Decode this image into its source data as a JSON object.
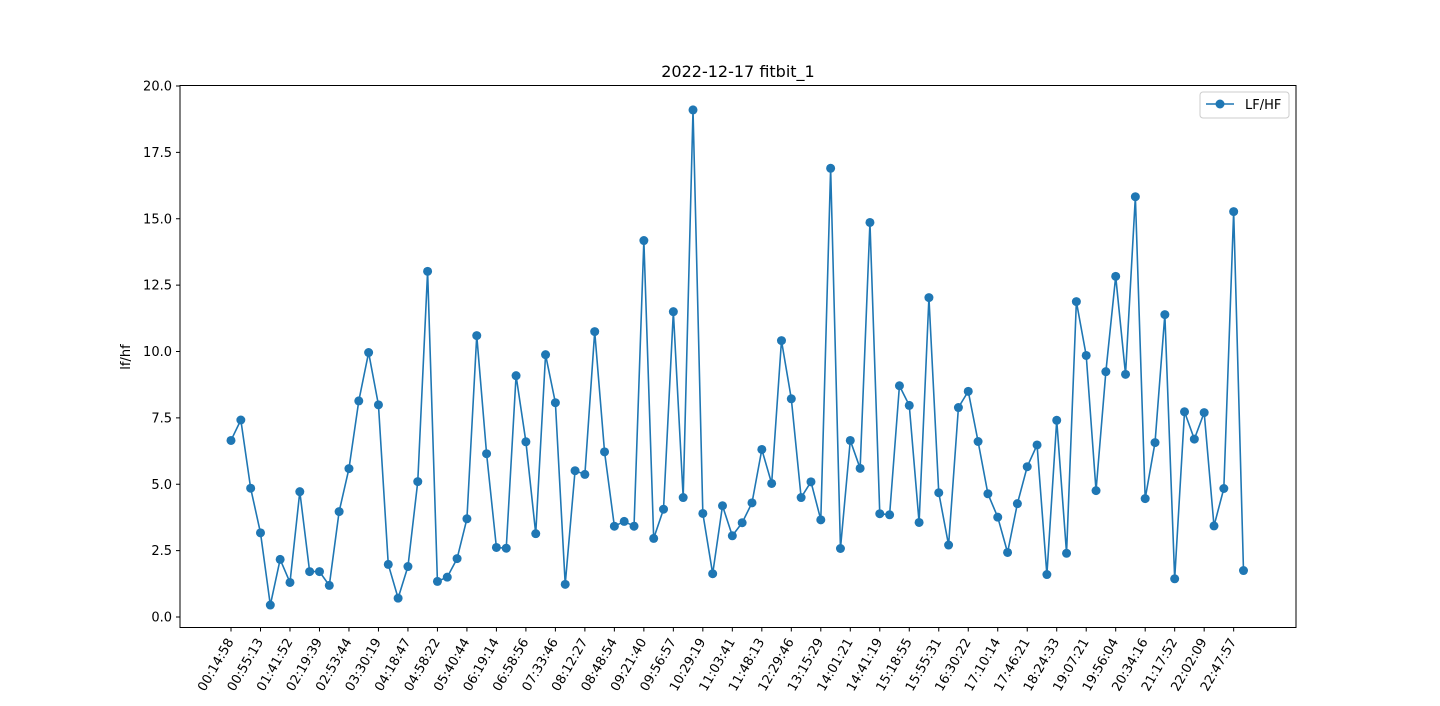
{
  "chart_data": {
    "type": "line",
    "title": "2022-12-17   fitbit_1",
    "xlabel": "",
    "ylabel": "lf/hf",
    "ylim": [
      -0.35,
      20.0
    ],
    "yticks": [
      0.0,
      2.5,
      5.0,
      7.5,
      10.0,
      12.5,
      15.0,
      17.5,
      20.0
    ],
    "ytick_labels": [
      "0.0",
      "2.5",
      "5.0",
      "7.5",
      "10.0",
      "12.5",
      "15.0",
      "17.5",
      "20.0"
    ],
    "xtick_labels": [
      "00:14:58",
      "00:55:13",
      "01:41:52",
      "02:19:39",
      "02:53:44",
      "03:30:19",
      "04:18:47",
      "04:58:22",
      "05:40:44",
      "06:19:14",
      "06:58:56",
      "07:33:46",
      "08:12:27",
      "08:48:54",
      "09:21:40",
      "09:56:57",
      "10:29:19",
      "11:03:41",
      "11:48:13",
      "12:29:46",
      "13:15:29",
      "14:01:21",
      "14:41:19",
      "15:18:55",
      "15:55:31",
      "16:30:22",
      "17:10:14",
      "17:46:21",
      "18:24:33",
      "19:07:21",
      "19:56:04",
      "20:34:16",
      "21:17:52",
      "22:02:09",
      "22:47:57"
    ],
    "xtick_every": 3,
    "grid": false,
    "legend_position": "upper right",
    "series": [
      {
        "name": "LF/HF",
        "color": "#1f77b4",
        "marker": "circle",
        "values": [
          6.65,
          7.42,
          4.85,
          3.17,
          0.45,
          2.17,
          1.3,
          4.72,
          1.71,
          1.71,
          1.19,
          3.97,
          5.59,
          8.14,
          9.96,
          7.99,
          1.98,
          0.71,
          1.9,
          5.1,
          13.02,
          1.34,
          1.5,
          2.2,
          3.7,
          10.6,
          6.15,
          2.62,
          2.59,
          9.09,
          6.6,
          3.14,
          9.88,
          8.07,
          1.23,
          5.51,
          5.37,
          10.75,
          6.22,
          3.42,
          3.6,
          3.42,
          14.18,
          2.96,
          4.06,
          11.5,
          4.5,
          19.1,
          3.9,
          1.63,
          4.19,
          3.06,
          3.55,
          4.3,
          6.31,
          5.03,
          10.41,
          8.22,
          4.5,
          5.09,
          3.66,
          16.9,
          2.58,
          6.65,
          5.6,
          14.86,
          3.89,
          3.85,
          8.71,
          7.97,
          3.56,
          12.03,
          4.68,
          2.71,
          7.89,
          8.5,
          6.61,
          4.64,
          3.76,
          2.43,
          4.27,
          5.66,
          6.48,
          1.6,
          7.41,
          2.4,
          11.88,
          9.85,
          4.76,
          9.24,
          12.83,
          9.14,
          15.83,
          4.46,
          6.57,
          11.39,
          1.44,
          7.73,
          6.7,
          7.7,
          3.43,
          4.84,
          15.27,
          1.75
        ]
      }
    ]
  }
}
